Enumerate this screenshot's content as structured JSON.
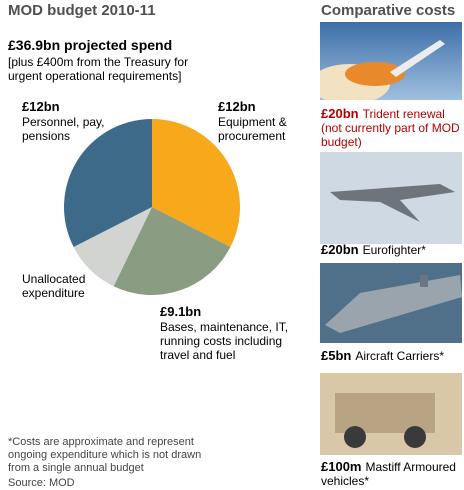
{
  "title": "MOD budget 2010-11",
  "headline": "£36.9bn projected spend",
  "subheadline": "[plus £400m from the Treasury for urgent operational requirements]",
  "chart_data": {
    "type": "pie",
    "categories": [
      "Equipment & procurement",
      "Bases, maintenance, IT, running costs including travel and fuel",
      "Unallocated expenditure",
      "Personnel, pay, pensions"
    ],
    "values": [
      12,
      9.1,
      3.8,
      12
    ],
    "value_labels": [
      "£12bn",
      "£9.1bn",
      null,
      "£12bn"
    ],
    "colors": [
      "#f7a81b",
      "#8a9c82",
      "#d2d4d2",
      "#3e6a8a"
    ]
  },
  "footnote": "*Costs are approximate and represent ongoing expenditure which is not drawn from a single annual budget",
  "source": "Source: MOD",
  "sidebar": {
    "title": "Comparative costs",
    "items": [
      {
        "amount": "£20bn",
        "label": "Trident renewal (not currently part of MOD budget)"
      },
      {
        "amount": "£20bn",
        "label": "Eurofighter*"
      },
      {
        "amount": "£5bn",
        "label": "Aircraft Carriers*"
      },
      {
        "amount": "£100m",
        "label": "Mastiff Armoured vehicles*"
      }
    ]
  }
}
